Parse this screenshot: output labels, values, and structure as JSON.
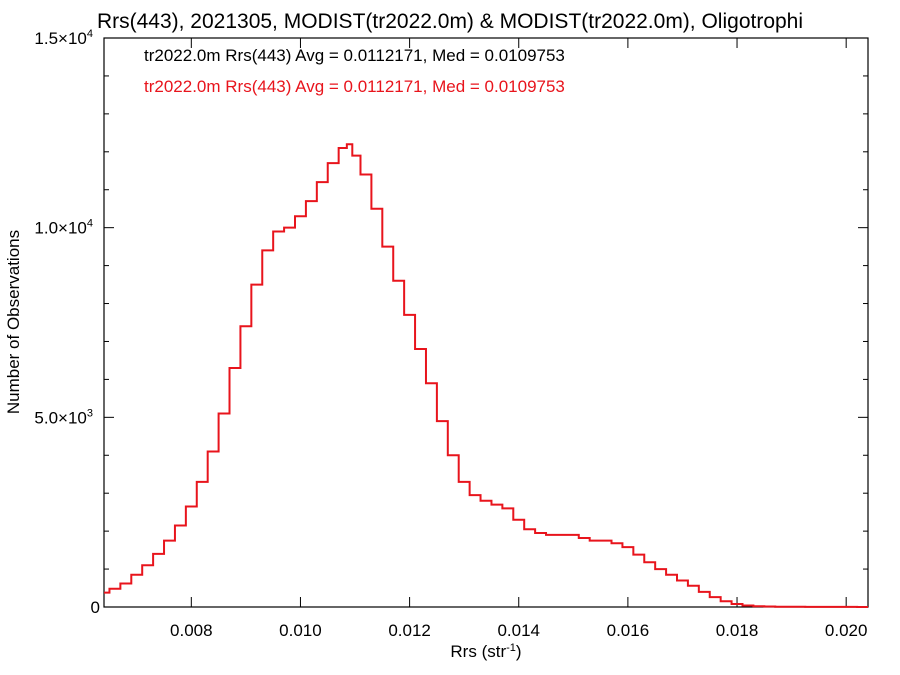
{
  "chart_data": {
    "type": "line",
    "title": "Rrs(443), 2021305, MODIST(tr2022.0m) & MODIST(tr2022.0m), Oligotrophi",
    "xlabel": "Rrs (str",
    "xlabel_sup": "-1",
    "xlabel_end": ")",
    "ylabel": "Number of Observations",
    "xlim": [
      0.0064,
      0.0204
    ],
    "ylim": [
      0,
      15000
    ],
    "x_ticks": [
      {
        "value": 0.008,
        "label": "0.008"
      },
      {
        "value": 0.01,
        "label": "0.010"
      },
      {
        "value": 0.012,
        "label": "0.012"
      },
      {
        "value": 0.014,
        "label": "0.014"
      },
      {
        "value": 0.016,
        "label": "0.016"
      },
      {
        "value": 0.018,
        "label": "0.018"
      },
      {
        "value": 0.02,
        "label": "0.020"
      }
    ],
    "y_ticks": [
      {
        "value": 0,
        "mant": "0",
        "exp": ""
      },
      {
        "value": 5000,
        "mant": "5.0×10",
        "exp": "3"
      },
      {
        "value": 10000,
        "mant": "1.0×10",
        "exp": "4"
      },
      {
        "value": 15000,
        "mant": "1.5×10",
        "exp": "4"
      }
    ],
    "annotations": [
      {
        "text": "tr2022.0m Rrs(443) Avg = 0.0112171, Med = 0.0109753",
        "color": "#000000"
      },
      {
        "text": "tr2022.0m Rrs(443) Avg = 0.0112171, Med = 0.0109753",
        "color": "#e8141c"
      }
    ],
    "series": [
      {
        "color": "#e8141c",
        "x": [
          0.0064,
          0.0066,
          0.0068,
          0.007,
          0.0072,
          0.0074,
          0.0076,
          0.0078,
          0.008,
          0.0082,
          0.0084,
          0.0086,
          0.0088,
          0.009,
          0.0092,
          0.0094,
          0.0096,
          0.0098,
          0.01,
          0.0102,
          0.0104,
          0.0106,
          0.0108,
          0.0109,
          0.011,
          0.0112,
          0.0114,
          0.0116,
          0.0118,
          0.012,
          0.0122,
          0.0124,
          0.0126,
          0.0128,
          0.013,
          0.0132,
          0.0134,
          0.0136,
          0.0138,
          0.014,
          0.0142,
          0.0144,
          0.0146,
          0.0148,
          0.015,
          0.0152,
          0.0154,
          0.0156,
          0.0158,
          0.016,
          0.0162,
          0.0164,
          0.0166,
          0.0168,
          0.017,
          0.0172,
          0.0174,
          0.0176,
          0.0178,
          0.018,
          0.0182,
          0.0184,
          0.0186,
          0.0188,
          0.019,
          0.0195,
          0.02,
          0.0204
        ],
        "values": [
          380,
          480,
          620,
          850,
          1100,
          1400,
          1750,
          2150,
          2650,
          3300,
          4100,
          5100,
          6300,
          7400,
          8500,
          9400,
          9900,
          10000,
          10300,
          10700,
          11200,
          11700,
          12100,
          12200,
          11900,
          11400,
          10500,
          9500,
          8600,
          7700,
          6800,
          5900,
          4900,
          4000,
          3300,
          2950,
          2800,
          2700,
          2600,
          2300,
          2050,
          1950,
          1900,
          1900,
          1900,
          1820,
          1750,
          1750,
          1680,
          1580,
          1380,
          1180,
          1000,
          850,
          700,
          560,
          400,
          260,
          150,
          80,
          40,
          20,
          12,
          8,
          5,
          3,
          2,
          1
        ]
      }
    ]
  }
}
